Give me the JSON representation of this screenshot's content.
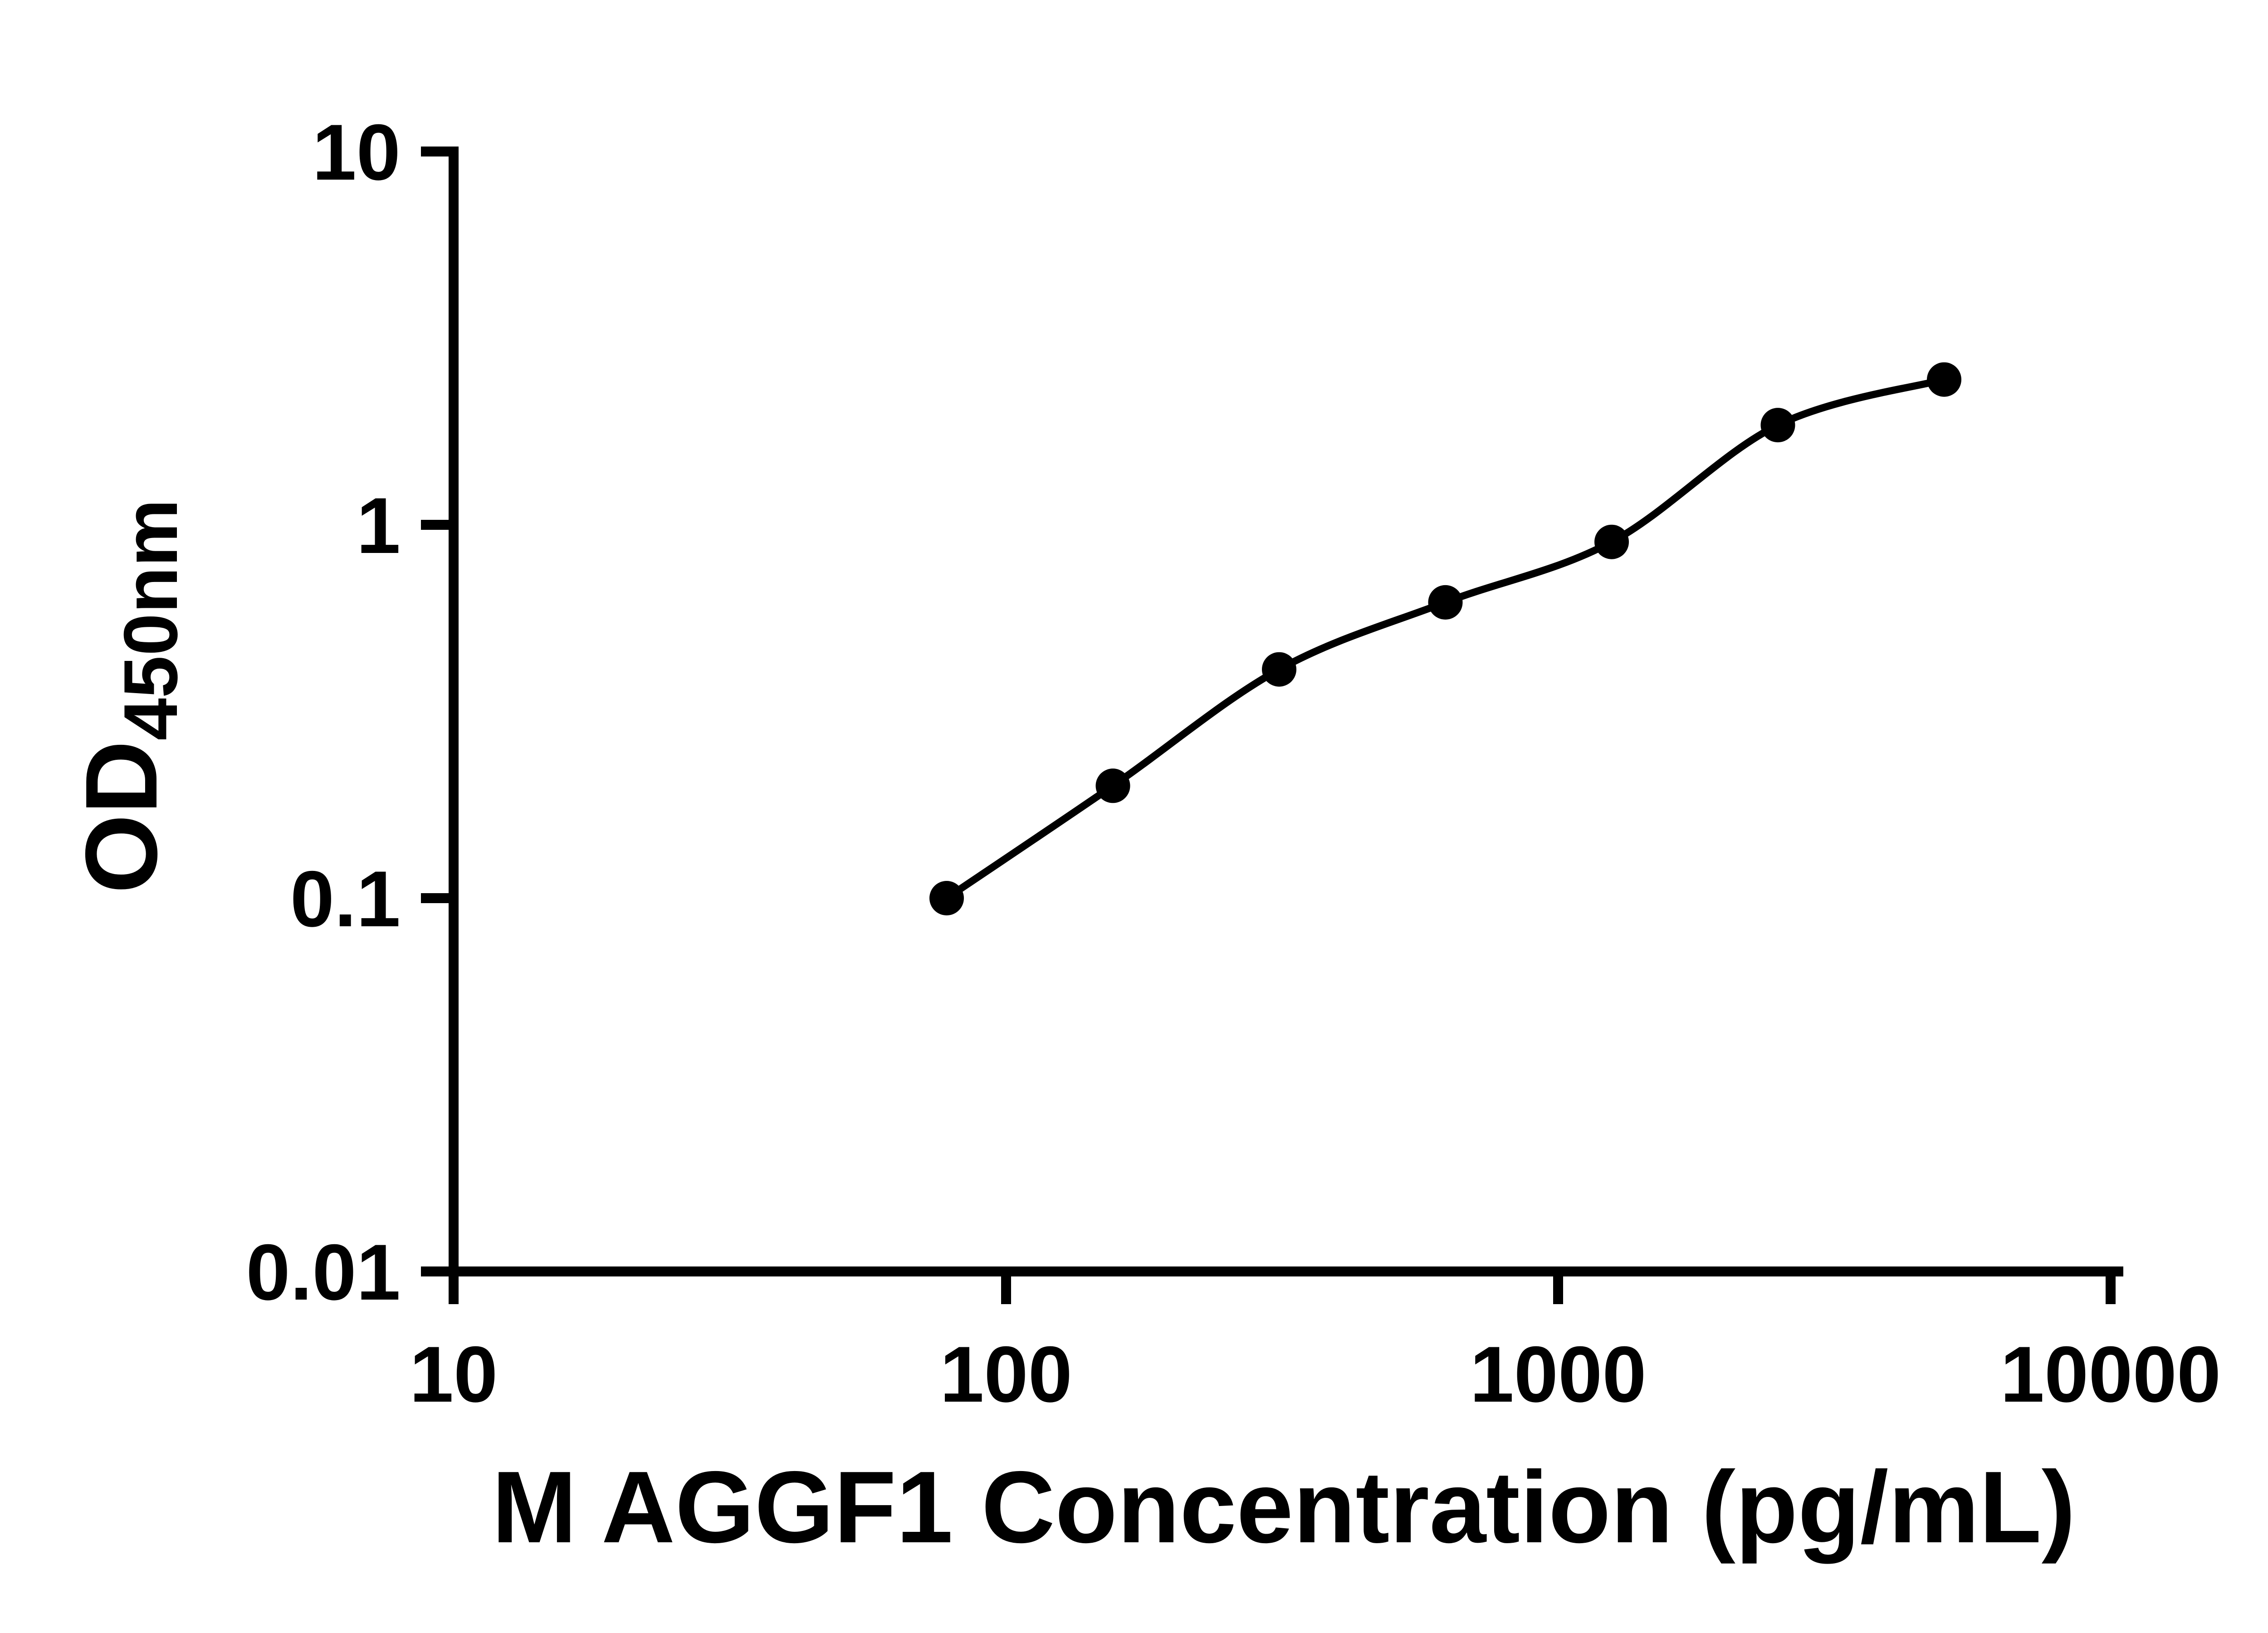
{
  "chart_data": {
    "type": "scatter",
    "title": "",
    "xlabel": "M AGGF1 Concentration (pg/mL)",
    "ylabel_main": "OD",
    "ylabel_sub": "450nm",
    "x_scale": "log",
    "y_scale": "log",
    "xlim": [
      10,
      10000
    ],
    "ylim": [
      0.01,
      10
    ],
    "x_ticks": [
      10,
      100,
      1000,
      10000
    ],
    "x_tick_labels": [
      "10",
      "100",
      "1000",
      "10000"
    ],
    "y_ticks": [
      0.01,
      0.1,
      1,
      10
    ],
    "y_tick_labels": [
      "0.01",
      "0.1",
      "1",
      "10"
    ],
    "grid": "off",
    "legend": "none",
    "points": [
      {
        "x": 78.125,
        "y": 0.1
      },
      {
        "x": 156.25,
        "y": 0.2
      },
      {
        "x": 312.5,
        "y": 0.41
      },
      {
        "x": 625,
        "y": 0.62
      },
      {
        "x": 1250,
        "y": 0.9
      },
      {
        "x": 2500,
        "y": 1.85
      },
      {
        "x": 5000,
        "y": 2.45
      }
    ],
    "curve_style": "smooth 4PL standard-curve fit through points",
    "colors": {
      "background": "#ffffff",
      "axis": "#000000",
      "points": "#000000",
      "line": "#000000",
      "text": "#000000"
    }
  }
}
